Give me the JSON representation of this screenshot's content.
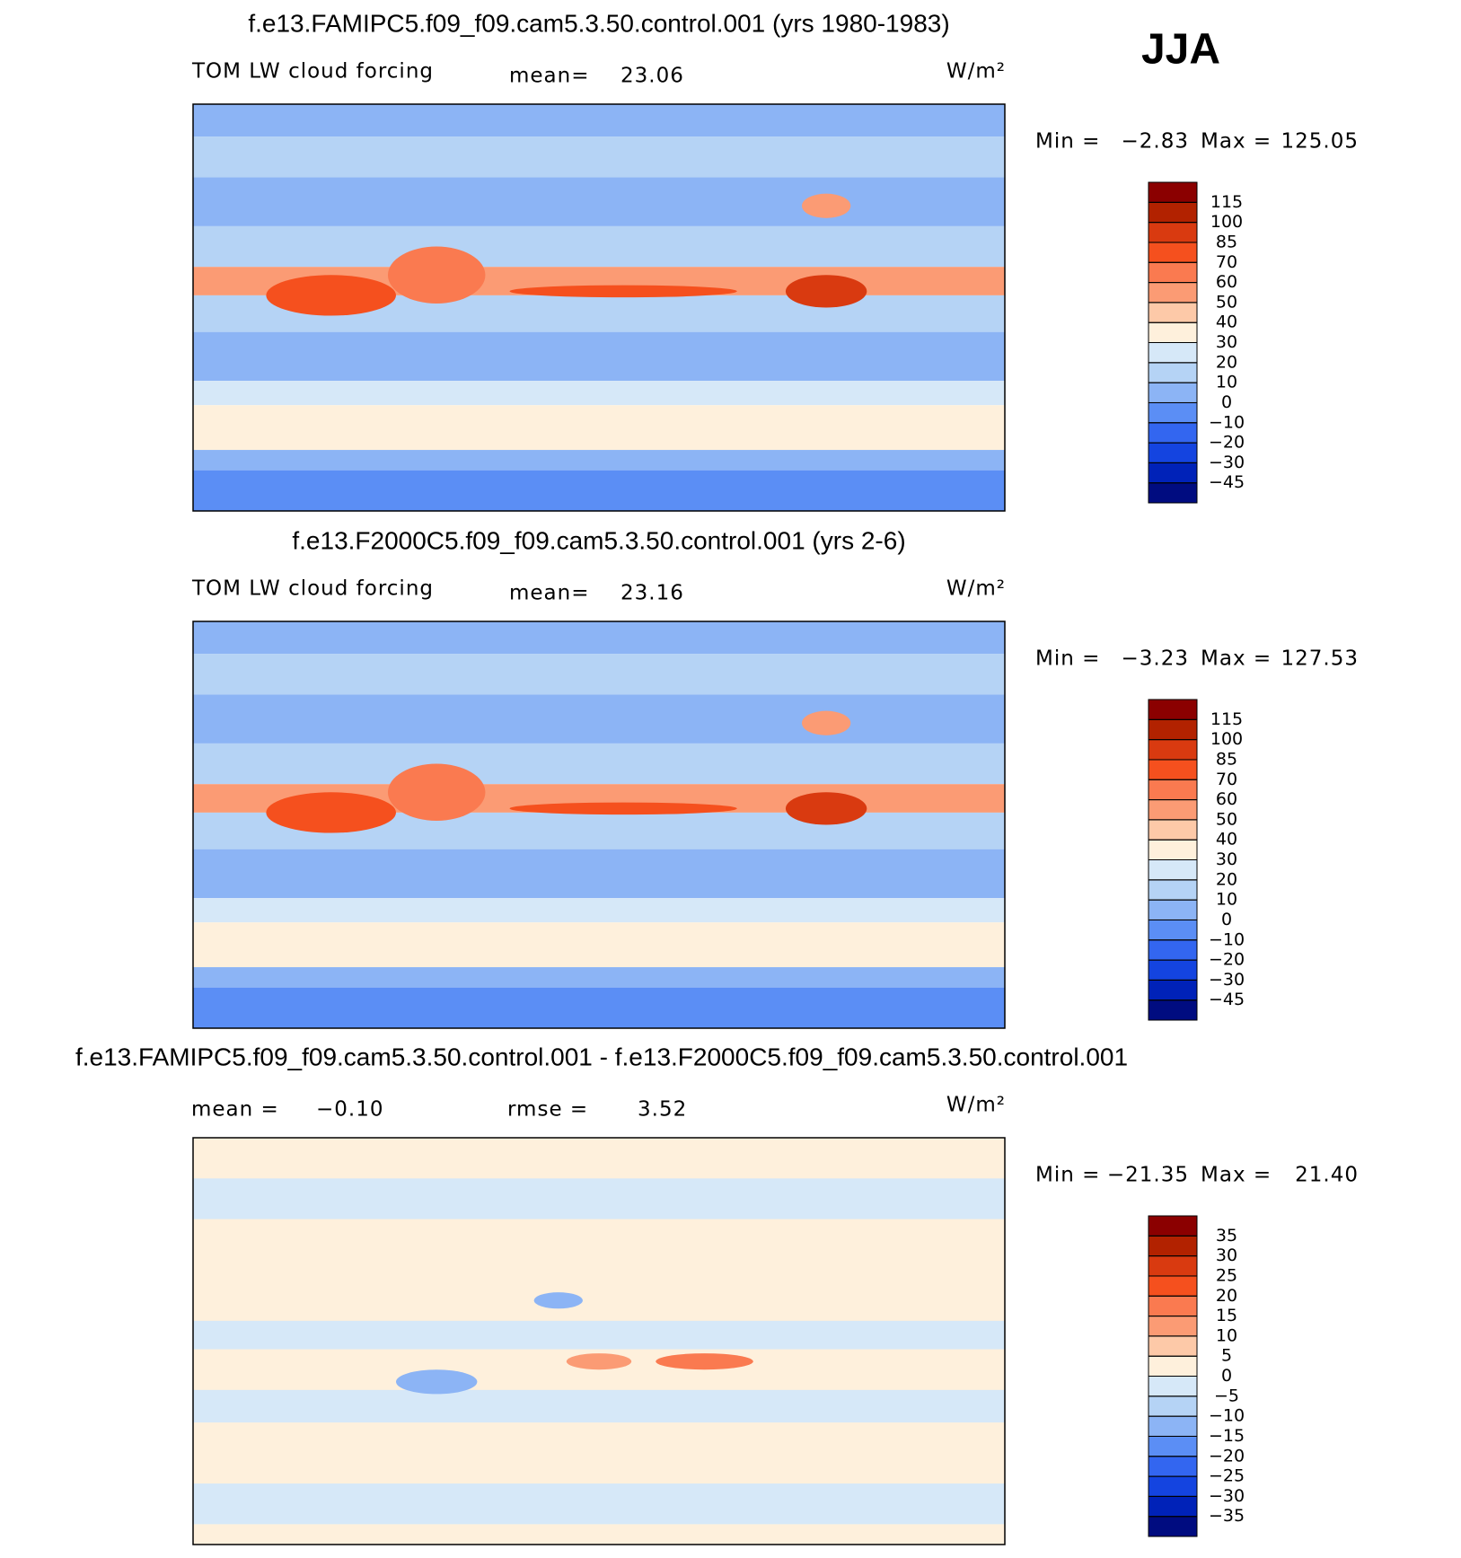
{
  "header": {
    "season": "JJA"
  },
  "chart_data": [
    {
      "type": "contour-map",
      "title": "f.e13.FAMIPC5.f09_f09.cam5.3.50.control.001 (yrs 1980-1983)",
      "variable": "TOM LW cloud forcing",
      "units": "W/m²",
      "stats": [
        {
          "label": "mean=",
          "value": 23.06
        }
      ],
      "range": [
        {
          "label": "Min =",
          "value": {
            "value": -2.83,
            "label": "−2.83"
          }
        },
        {
          "label": "Max =",
          "value": 125.05
        }
      ],
      "levels": [
        {
          "value": -45,
          "label": "−45"
        },
        {
          "value": -30,
          "label": "−30"
        },
        {
          "value": -20,
          "label": "−20"
        },
        {
          "value": -10,
          "label": "−10"
        },
        0,
        10,
        20,
        30,
        40,
        50,
        60,
        70,
        85,
        100,
        115
      ],
      "colors": [
        "#000c80",
        "#0022b8",
        "#1444e0",
        "#3366f0",
        "#5b8ef5",
        "#8cb4f5",
        "#b5d3f5",
        "#d6e8f8",
        "#fef0dc",
        "#fdc9a8",
        "#fb9b74",
        "#fa7a50",
        "#f5501e",
        "#d93a10",
        "#b22200",
        "#8b0000"
      ]
    },
    {
      "type": "contour-map",
      "title": "f.e13.F2000C5.f09_f09.cam5.3.50.control.001 (yrs 2-6)",
      "variable": "TOM LW cloud forcing",
      "units": "W/m²",
      "stats": [
        {
          "label": "mean=",
          "value": 23.16
        }
      ],
      "range": [
        {
          "label": "Min =",
          "value": {
            "value": -3.23,
            "label": "−3.23"
          }
        },
        {
          "label": "Max =",
          "value": 127.53
        }
      ],
      "levels": [
        {
          "value": -45,
          "label": "−45"
        },
        {
          "value": -30,
          "label": "−30"
        },
        {
          "value": -20,
          "label": "−20"
        },
        {
          "value": -10,
          "label": "−10"
        },
        0,
        10,
        20,
        30,
        40,
        50,
        60,
        70,
        85,
        100,
        115
      ],
      "colors": [
        "#000c80",
        "#0022b8",
        "#1444e0",
        "#3366f0",
        "#5b8ef5",
        "#8cb4f5",
        "#b5d3f5",
        "#d6e8f8",
        "#fef0dc",
        "#fdc9a8",
        "#fb9b74",
        "#fa7a50",
        "#f5501e",
        "#d93a10",
        "#b22200",
        "#8b0000"
      ]
    },
    {
      "type": "contour-map",
      "title": "f.e13.FAMIPC5.f09_f09.cam5.3.50.control.001 - f.e13.F2000C5.f09_f09.cam5.3.50.control.001",
      "units": "W/m²",
      "stats": [
        {
          "label": "mean =",
          "value": {
            "value": -0.1,
            "label": "−0.10"
          }
        },
        {
          "label": "rmse =",
          "value": 3.52
        }
      ],
      "range": [
        {
          "label": "Min =",
          "value": {
            "value": -21.35,
            "label": "−21.35"
          }
        },
        {
          "label": "Max =",
          "value": {
            "value": 21.4,
            "label": "21.40"
          }
        }
      ],
      "levels": [
        {
          "value": -35,
          "label": "−35"
        },
        {
          "value": -30,
          "label": "−30"
        },
        {
          "value": -25,
          "label": "−25"
        },
        {
          "value": -20,
          "label": "−20"
        },
        {
          "value": -15,
          "label": "−15"
        },
        {
          "value": -10,
          "label": "−10"
        },
        {
          "value": -5,
          "label": "−5"
        },
        0,
        5,
        10,
        15,
        20,
        25,
        30,
        35
      ],
      "colors": [
        "#000c80",
        "#0022b8",
        "#1444e0",
        "#3366f0",
        "#5b8ef5",
        "#8cb4f5",
        "#b5d3f5",
        "#d6e8f8",
        "#fef0dc",
        "#fdc9a8",
        "#fb9b74",
        "#fa7a50",
        "#f5501e",
        "#d93a10",
        "#b22200",
        "#8b0000"
      ]
    }
  ]
}
